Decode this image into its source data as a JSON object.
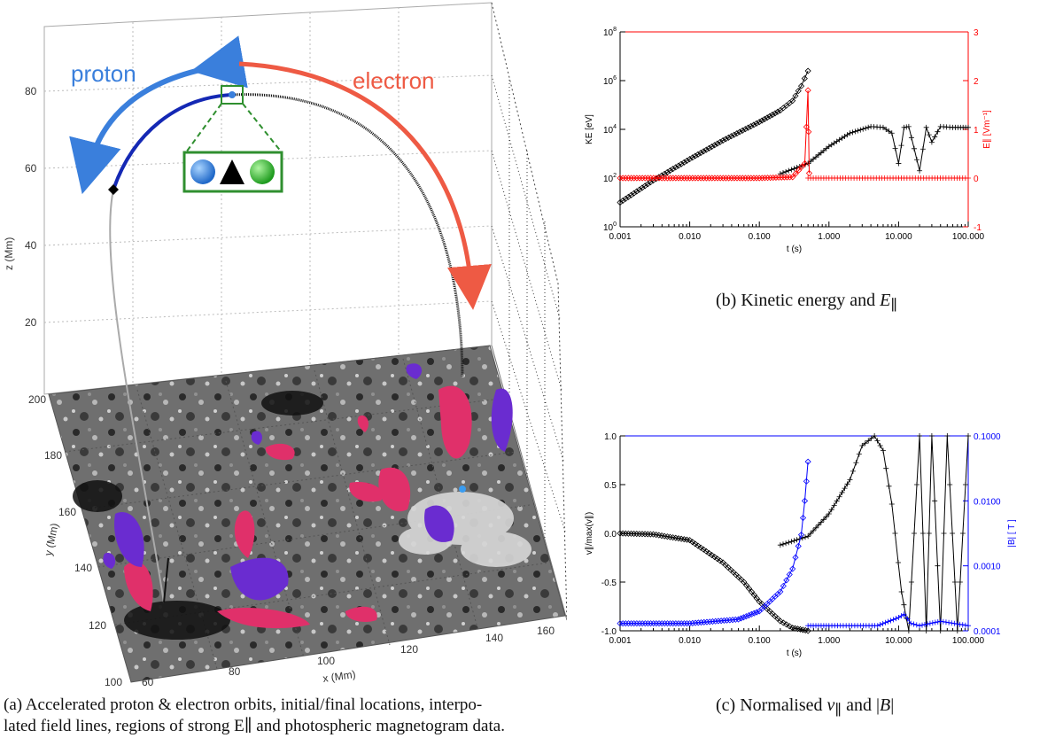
{
  "panel_a": {
    "caption_line1": "(a) Accelerated proton & electron orbits, initial/final locations, interpo-",
    "caption_line2": "lated field lines, regions of strong E∥ and photospheric magnetogram data.",
    "label_proton": "proton",
    "label_electron": "electron",
    "axis_z": "z (Mm)",
    "axis_y": "y (Mm)",
    "axis_x": "x (Mm)",
    "z_ticks": [
      "20",
      "40",
      "60",
      "80"
    ],
    "y_ticks": [
      "100",
      "120",
      "140",
      "160",
      "180",
      "200"
    ],
    "x_ticks": [
      "60",
      "80",
      "100",
      "120",
      "140",
      "160"
    ],
    "colors": {
      "proton": "#3a7fdc",
      "electron": "#ee5a44",
      "legend_box": "#2f8f2f",
      "isosurface_red": "#e0306a",
      "isosurface_blue": "#6a2cd0"
    }
  },
  "panel_b": {
    "caption_prefix": "(b) Kinetic energy and ",
    "caption_var": "E",
    "caption_sub": "∥",
    "chart_data": {
      "type": "line",
      "xlabel": "t (s)",
      "ylabel": "KE [eV]",
      "ylabel_right": "E∥ [Vm⁻¹]",
      "x_log": true,
      "xlim": [
        0.001,
        100
      ],
      "ylim": [
        1,
        100000000
      ],
      "ylim_right": [
        -1,
        3
      ],
      "x_ticks": [
        "0.001",
        "0.010",
        "0.100",
        "1.000",
        "10.000",
        "100.000"
      ],
      "y_tick_exponents": [
        "0",
        "2",
        "4",
        "6",
        "8"
      ],
      "y_right_ticks": [
        "-1",
        "0",
        "1",
        "2",
        "3"
      ],
      "series": [
        {
          "color": "#000000",
          "marker": "diamond",
          "x": [
            0.001,
            0.003,
            0.01,
            0.03,
            0.1,
            0.2,
            0.3,
            0.4,
            0.5
          ],
          "y": [
            10,
            80,
            600,
            3500,
            20000,
            60000,
            150000,
            600000,
            2500000
          ]
        },
        {
          "color": "#000000",
          "marker": "plus",
          "x": [
            0.2,
            0.5,
            1,
            2,
            4,
            6,
            8,
            10,
            12,
            14,
            20,
            25,
            30,
            40,
            60,
            100
          ],
          "y": [
            150,
            400,
            2000,
            7000,
            13000,
            12000,
            7000,
            400,
            12000,
            13000,
            200,
            12000,
            3000,
            13000,
            12000,
            12000
          ]
        },
        {
          "color": "#ff0000",
          "marker": "diamond",
          "axis": "right",
          "x": [
            0.001,
            0.01,
            0.1,
            0.3,
            0.45,
            0.5,
            0.52
          ],
          "y": [
            0,
            0,
            0,
            0.02,
            0.3,
            1.8,
            0.1
          ]
        },
        {
          "color": "#ff0000",
          "marker": "plus",
          "axis": "right",
          "x": [
            0.5,
            1,
            10,
            100
          ],
          "y": [
            0,
            0,
            0,
            0
          ]
        }
      ]
    }
  },
  "panel_c": {
    "caption_prefix": "(c) Normalised ",
    "caption_v": "v",
    "caption_sub": "∥",
    "caption_mid": " and |",
    "caption_B": "B",
    "caption_end": "|",
    "chart_data": {
      "type": "line",
      "xlabel": "t (s)",
      "ylabel": "v∥/max(v∥)",
      "ylabel_right": "|B| [ T ]",
      "x_log": true,
      "xlim": [
        0.001,
        100
      ],
      "ylim": [
        -1,
        1
      ],
      "ylim_right": [
        0.0001,
        0.1
      ],
      "x_ticks": [
        "0.001",
        "0.010",
        "0.100",
        "1.000",
        "10.000",
        "100.000"
      ],
      "y_ticks": [
        "-1.0",
        "-0.5",
        "0.0",
        "0.5",
        "1.0"
      ],
      "y_right_ticks": [
        "0.0001",
        "0.0010",
        "0.0100",
        "0.1000"
      ],
      "series": [
        {
          "color": "#000000",
          "marker": "diamond",
          "x": [
            0.001,
            0.003,
            0.01,
            0.03,
            0.06,
            0.1,
            0.2,
            0.3,
            0.5
          ],
          "y": [
            0,
            -0.01,
            -0.07,
            -0.3,
            -0.5,
            -0.7,
            -0.9,
            -0.97,
            -1.0
          ]
        },
        {
          "color": "#000000",
          "marker": "plus",
          "x": [
            0.2,
            0.5,
            1,
            2,
            3,
            4.5,
            6,
            8,
            11,
            14,
            20,
            25,
            30,
            40,
            50,
            70,
            100
          ],
          "y": [
            -0.12,
            -0.03,
            0.2,
            0.55,
            0.9,
            1.0,
            0.85,
            0.3,
            -0.6,
            -1.0,
            1.0,
            -1.0,
            1.0,
            -1.0,
            1.0,
            -1.0,
            1.0
          ]
        },
        {
          "color": "#0000ff",
          "marker": "diamond",
          "axis": "right",
          "x": [
            0.001,
            0.01,
            0.05,
            0.1,
            0.2,
            0.3,
            0.4,
            0.45,
            0.5
          ],
          "y": [
            0.00013,
            0.00013,
            0.00015,
            0.0002,
            0.0004,
            0.0009,
            0.003,
            0.01,
            0.04
          ]
        },
        {
          "color": "#0000ff",
          "marker": "plus",
          "axis": "right",
          "x": [
            0.5,
            1,
            5,
            10,
            12,
            15,
            20,
            40,
            100
          ],
          "y": [
            0.00012,
            0.00012,
            0.00012,
            0.00016,
            0.00018,
            0.00013,
            0.00012,
            0.00014,
            0.00012
          ]
        }
      ]
    }
  }
}
